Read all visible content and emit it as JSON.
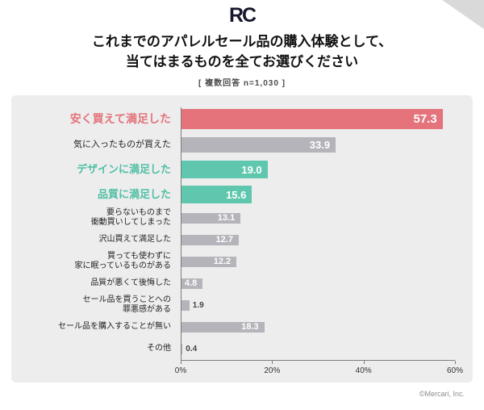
{
  "header": {
    "logo": "RC",
    "title_line1": "これまでのアパレルセール品の購入体験として、",
    "title_line2": "当てはまるものを全てお選びください",
    "subtitle": "[ 複数回答 n=1,030 ]"
  },
  "footer": {
    "credit": "©Mercari, Inc."
  },
  "colors": {
    "red": "#e4737c",
    "teal": "#5fc7ae",
    "gray": "#b4b4ba",
    "panel": "#ededed",
    "axis": "#7d7d7d"
  },
  "chart_data": {
    "type": "bar",
    "orientation": "horizontal",
    "title": "これまでのアパレルセール品の購入体験として、当てはまるものを全てお選びください",
    "subtitle": "[ 複数回答 n=1,030 ]",
    "xlabel": "",
    "ylabel": "",
    "xlim": [
      0,
      60
    ],
    "x_ticks": [
      "0%",
      "20%",
      "40%",
      "60%"
    ],
    "grid": false,
    "legend": false,
    "categories": [
      "安く買えて満足した",
      "気に入ったものが買えた",
      "デザインに満足した",
      "品質に満足した",
      "要らないものまで衝動買いしてしまった",
      "沢山買えて満足した",
      "買っても使わずに家に眠っているものがある",
      "品質が悪くて後悔した",
      "セール品を買うことへの罪悪感がある",
      "セール品を購入することが無い",
      "その他"
    ],
    "values": [
      57.3,
      33.9,
      19.0,
      15.6,
      13.1,
      12.7,
      12.2,
      4.8,
      1.9,
      18.3,
      0.4
    ],
    "rows": [
      {
        "label": "安く買えて満足した",
        "value": 57.3,
        "value_display": "57.3",
        "color": "red",
        "size": "xl",
        "label_style": "red",
        "value_outside": false
      },
      {
        "label": "気に入ったものが買えた",
        "value": 33.9,
        "value_display": "33.9",
        "color": "gray",
        "size": "lg",
        "label_style": "normal",
        "value_outside": false
      },
      {
        "label": "デザインに満足した",
        "value": 19.0,
        "value_display": "19.0",
        "color": "teal",
        "size": "lg2",
        "label_style": "teal",
        "value_outside": false
      },
      {
        "label": "品質に満足した",
        "value": 15.6,
        "value_display": "15.6",
        "color": "teal",
        "size": "lg2",
        "label_style": "teal",
        "value_outside": false
      },
      {
        "label": "要らないものまで\n衝動買いしてしまった",
        "value": 13.1,
        "value_display": "13.1",
        "color": "gray",
        "size": "sm",
        "label_style": "normal",
        "value_outside": false
      },
      {
        "label": "沢山買えて満足した",
        "value": 12.7,
        "value_display": "12.7",
        "color": "gray",
        "size": "sm",
        "label_style": "normal",
        "value_outside": false
      },
      {
        "label": "買っても使わずに\n家に眠っているものがある",
        "value": 12.2,
        "value_display": "12.2",
        "color": "gray",
        "size": "sm",
        "label_style": "normal",
        "value_outside": false
      },
      {
        "label": "品質が悪くて後悔した",
        "value": 4.8,
        "value_display": "4.8",
        "color": "gray",
        "size": "sm",
        "label_style": "normal",
        "value_outside": false
      },
      {
        "label": "セール品を買うことへの\n罪悪感がある",
        "value": 1.9,
        "value_display": "1.9",
        "color": "gray",
        "size": "sm",
        "label_style": "normal",
        "value_outside": true
      },
      {
        "label": "セール品を購入することが無い",
        "value": 18.3,
        "value_display": "18.3",
        "color": "gray",
        "size": "sm",
        "label_style": "normal",
        "value_outside": false
      },
      {
        "label": "その他",
        "value": 0.4,
        "value_display": "0.4",
        "color": "gray",
        "size": "sm",
        "label_style": "normal",
        "value_outside": true
      }
    ]
  }
}
